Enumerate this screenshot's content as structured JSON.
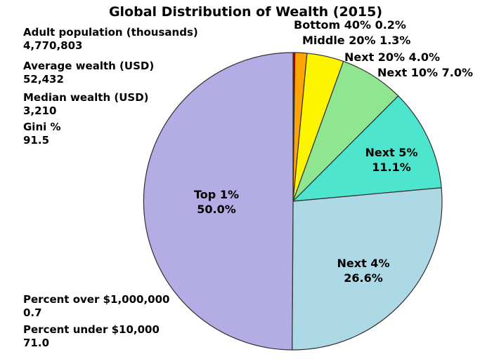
{
  "title": "Global Distribution of Wealth (2015)",
  "stats": [
    {
      "label": "Adult population (thousands)",
      "value": "4,770,803"
    },
    {
      "label": "Average wealth (USD)",
      "value": "52,432"
    },
    {
      "label": "Median wealth (USD)",
      "value": "3,210"
    },
    {
      "label": "Gini %",
      "value": "91.5"
    },
    {
      "label": "Percent over $1,000,000",
      "value": "0.7"
    },
    {
      "label": "Percent under $10,000",
      "value": "71.0"
    }
  ],
  "chart_data": {
    "type": "pie",
    "title": "Global Distribution of Wealth (2015)",
    "start_angle": "12-o-clock",
    "direction": "clockwise",
    "outline_color": "#2f2f2f",
    "legend_position": "none",
    "slices": [
      {
        "label": "Bottom 40%",
        "value": 0.2,
        "color": "#c00000",
        "label_placement": "outside"
      },
      {
        "label": "Middle 20%",
        "value": 1.3,
        "color": "#ffa405",
        "label_placement": "outside"
      },
      {
        "label": "Next 20%",
        "value": 4.0,
        "color": "#fdf500",
        "label_placement": "outside"
      },
      {
        "label": "Next 10%",
        "value": 7.0,
        "color": "#90e590",
        "label_placement": "outside"
      },
      {
        "label": "Next 5%",
        "value": 11.1,
        "color": "#4de5cd",
        "label_placement": "inside"
      },
      {
        "label": "Next 4%",
        "value": 26.6,
        "color": "#add8e6",
        "label_placement": "inside"
      },
      {
        "label": "Top 1%",
        "value": 50.0,
        "color": "#b3ace5",
        "label_placement": "inside"
      }
    ],
    "annotations": [
      "Adult population (thousands) 4,770,803",
      "Average wealth (USD) 52,432",
      "Median wealth (USD) 3,210",
      "Gini % 91.5",
      "Percent over $1,000,000 0.7",
      "Percent under $10,000 71.0"
    ]
  }
}
